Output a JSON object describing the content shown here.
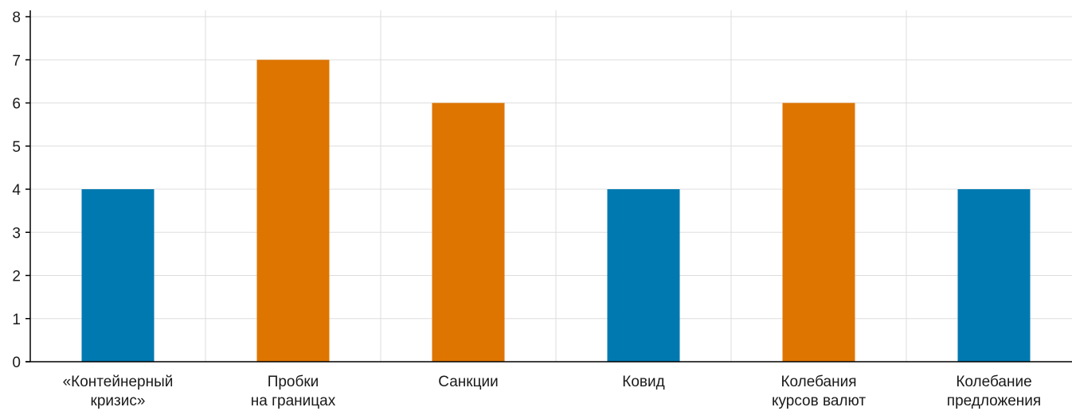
{
  "chart_data": {
    "type": "bar",
    "title": "",
    "xlabel": "",
    "ylabel": "",
    "ylim": [
      0,
      8
    ],
    "yticks": [
      "0",
      "1",
      "2",
      "3",
      "4",
      "5",
      "6",
      "7",
      "8"
    ],
    "categories": [
      [
        "«Контейнерный",
        "кризис»"
      ],
      [
        "Пробки",
        "на границах"
      ],
      [
        "Санкции"
      ],
      [
        "Ковид"
      ],
      [
        "Колебания",
        "курсов валют"
      ],
      [
        "Колебание",
        "предложения"
      ]
    ],
    "values": [
      4,
      7,
      6,
      4,
      6,
      4
    ],
    "bar_colors": [
      "#0079b0",
      "#de7500",
      "#de7500",
      "#0079b0",
      "#de7500",
      "#0079b0"
    ],
    "grid": true,
    "gridline_color": "#dddddd",
    "axis_color": "#000000"
  }
}
